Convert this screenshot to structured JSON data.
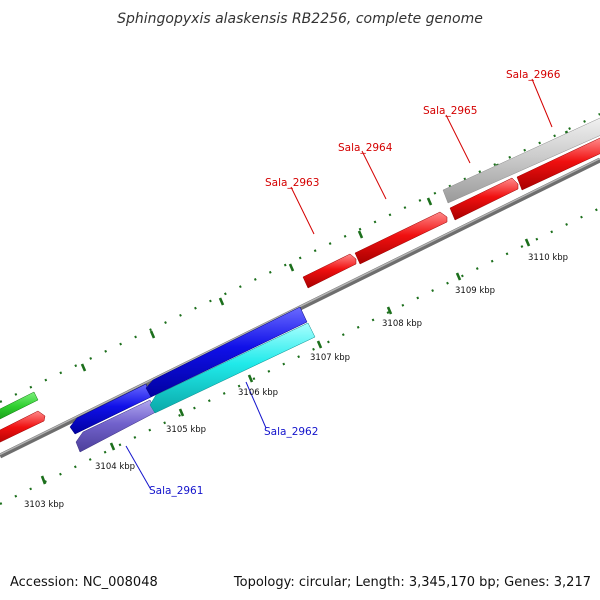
{
  "title": "Sphingopyxis alaskensis RB2256, complete genome",
  "footer": {
    "accession": "Accession: NC_008048",
    "topology": "Topology: circular; Length: 3,345,170 bp; Genes: 3,217"
  },
  "colors": {
    "forward_label": "#d40000",
    "reverse_label": "#1414cc",
    "backbone": "#8a8a8a",
    "tick": "#1c6f1c"
  },
  "scale_labels": [
    "3103 kbp",
    "3104 kbp",
    "3105 kbp",
    "3106 kbp",
    "3107 kbp",
    "3108 kbp",
    "3109 kbp",
    "3110 kbp"
  ],
  "genes": [
    {
      "name": "Sala_2961",
      "strand": "reverse",
      "color": "#7a68cc"
    },
    {
      "name": "Sala_2962",
      "strand": "reverse",
      "color": "#18e6e6"
    },
    {
      "name": "Sala_2963",
      "strand": "forward",
      "color": "#ff0000"
    },
    {
      "name": "Sala_2964",
      "strand": "forward",
      "color": "#ff0000"
    },
    {
      "name": "Sala_2965",
      "strand": "forward",
      "color": "#ff0000"
    },
    {
      "name": "Sala_2966",
      "strand": "forward",
      "color": "#c8c8c8"
    }
  ]
}
